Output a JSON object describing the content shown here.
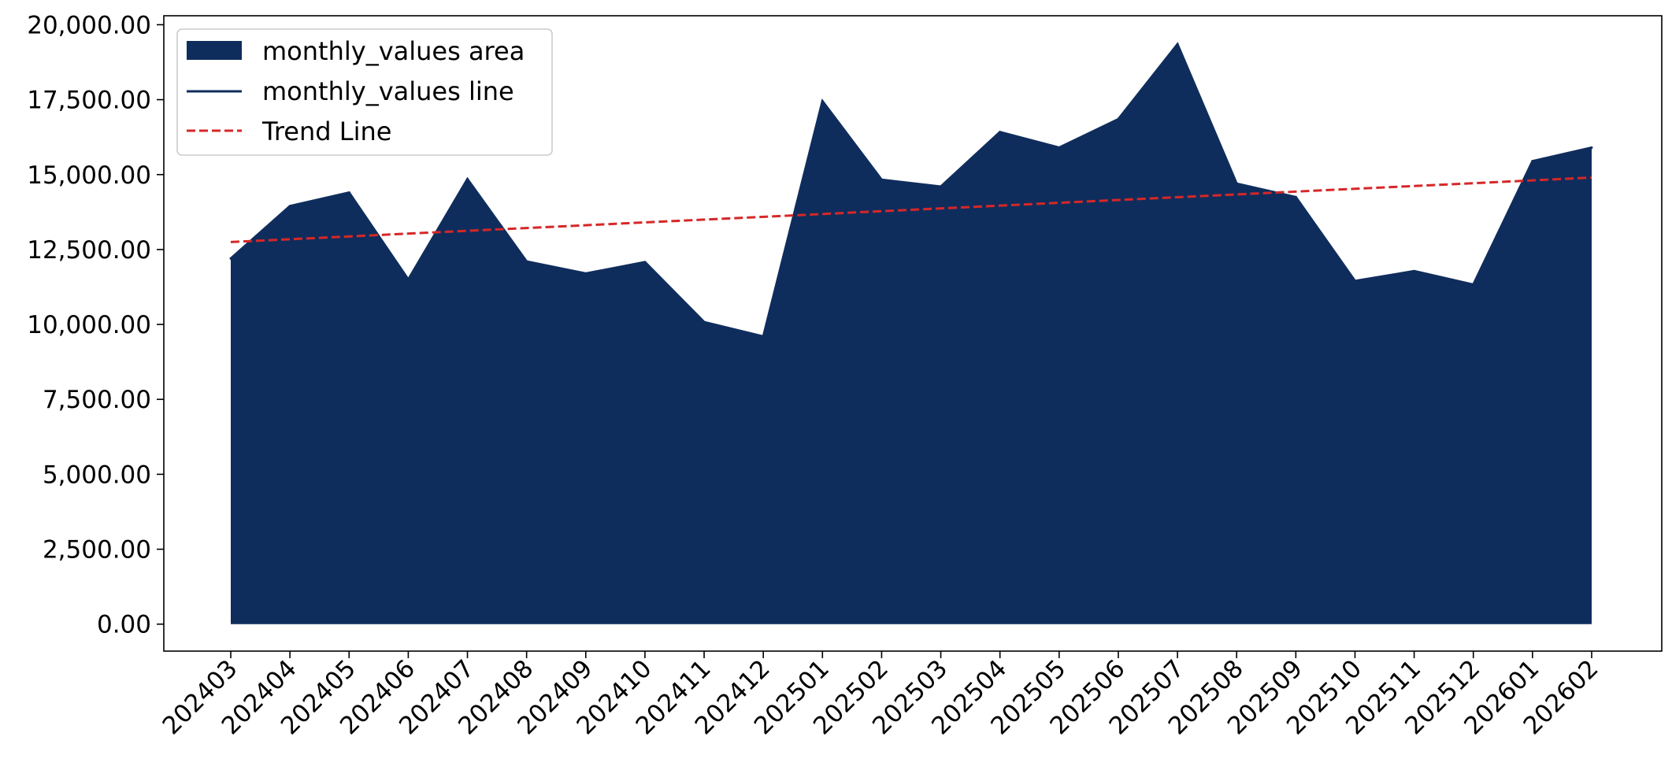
{
  "chart_data": {
    "type": "area",
    "title": "",
    "xlabel": "",
    "ylabel": "",
    "categories": [
      "202403",
      "202404",
      "202405",
      "202406",
      "202407",
      "202408",
      "202409",
      "202410",
      "202411",
      "202412",
      "202501",
      "202502",
      "202503",
      "202504",
      "202505",
      "202506",
      "202507",
      "202508",
      "202509",
      "202510",
      "202511",
      "202512",
      "202601",
      "202602"
    ],
    "series": [
      {
        "name": "monthly_values area",
        "kind": "area",
        "color": "#0f2d5c",
        "values": [
          12200,
          13950,
          14400,
          11500,
          14850,
          12100,
          11700,
          12080,
          10080,
          9600,
          17450,
          14830,
          14600,
          16420,
          15900,
          16850,
          19350,
          14700,
          14250,
          11450,
          11780,
          11330,
          15450,
          15900
        ]
      },
      {
        "name": "monthly_values line",
        "kind": "line",
        "color": "#0f2d5c",
        "values": [
          12200,
          13950,
          14400,
          11500,
          14850,
          12100,
          11700,
          12080,
          10080,
          9600,
          17450,
          14830,
          14600,
          16420,
          15900,
          16850,
          19350,
          14700,
          14250,
          11450,
          11780,
          11330,
          15450,
          15900
        ]
      },
      {
        "name": "Trend Line",
        "kind": "trend",
        "color": "#d62728",
        "dash": "dashed",
        "start": 12750,
        "end": 14900
      }
    ],
    "ylim": [
      -900,
      20300
    ],
    "yticks": [
      0,
      2500,
      5000,
      7500,
      10000,
      12500,
      15000,
      17500,
      20000
    ],
    "ytick_labels": [
      "0.00",
      "2,500.00",
      "5,000.00",
      "7,500.00",
      "10,000.00",
      "12,500.00",
      "15,000.00",
      "17,500.00",
      "20,000.00"
    ],
    "legend_position": "upper-left",
    "grid": false
  }
}
